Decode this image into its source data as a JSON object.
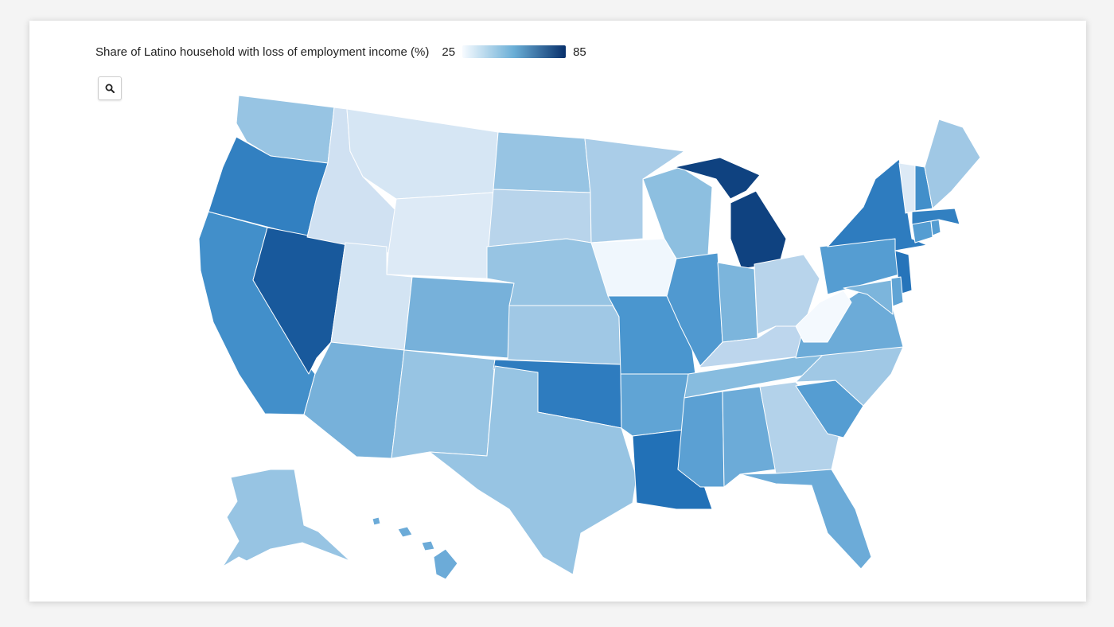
{
  "legend": {
    "title": "Share of Latino household with loss of employment income (%)",
    "min_label": "25",
    "max_label": "85",
    "color_min": "#f7fbff",
    "color_mid": "#6aaed6",
    "color_max": "#08306b"
  },
  "zoom_button": {
    "icon": "search-icon"
  },
  "chart_data": {
    "type": "choropleth",
    "title": "Share of Latino household with loss of employment income (%)",
    "scale": {
      "min": 25,
      "max": 85
    },
    "states": [
      {
        "id": "WA",
        "value": 50
      },
      {
        "id": "OR",
        "value": 70
      },
      {
        "id": "CA",
        "value": 66
      },
      {
        "id": "NV",
        "value": 78
      },
      {
        "id": "ID",
        "value": 37
      },
      {
        "id": "MT",
        "value": 35
      },
      {
        "id": "WY",
        "value": 33
      },
      {
        "id": "UT",
        "value": 36
      },
      {
        "id": "AZ",
        "value": 56
      },
      {
        "id": "CO",
        "value": 56
      },
      {
        "id": "NM",
        "value": 50
      },
      {
        "id": "ND",
        "value": 50
      },
      {
        "id": "SD",
        "value": 43
      },
      {
        "id": "NE",
        "value": 50
      },
      {
        "id": "KS",
        "value": 48
      },
      {
        "id": "OK",
        "value": 71
      },
      {
        "id": "TX",
        "value": 50
      },
      {
        "id": "MN",
        "value": 46
      },
      {
        "id": "IA",
        "value": 27
      },
      {
        "id": "MO",
        "value": 64
      },
      {
        "id": "AR",
        "value": 60
      },
      {
        "id": "LA",
        "value": 74
      },
      {
        "id": "WI",
        "value": 52
      },
      {
        "id": "IL",
        "value": 63
      },
      {
        "id": "MI",
        "value": 82
      },
      {
        "id": "IN",
        "value": 55
      },
      {
        "id": "OH",
        "value": 43
      },
      {
        "id": "KY",
        "value": 42
      },
      {
        "id": "TN",
        "value": 53
      },
      {
        "id": "MS",
        "value": 61
      },
      {
        "id": "AL",
        "value": 58
      },
      {
        "id": "GA",
        "value": 44
      },
      {
        "id": "FL",
        "value": 58
      },
      {
        "id": "SC",
        "value": 62
      },
      {
        "id": "NC",
        "value": 48
      },
      {
        "id": "VA",
        "value": 58
      },
      {
        "id": "WV",
        "value": 26
      },
      {
        "id": "PA",
        "value": 62
      },
      {
        "id": "NY",
        "value": 71
      },
      {
        "id": "NJ",
        "value": 73
      },
      {
        "id": "DE",
        "value": 60
      },
      {
        "id": "MD",
        "value": 55
      },
      {
        "id": "CT",
        "value": 62
      },
      {
        "id": "MA",
        "value": 70
      },
      {
        "id": "RI",
        "value": 62
      },
      {
        "id": "VT",
        "value": 33
      },
      {
        "id": "NH",
        "value": 66
      },
      {
        "id": "ME",
        "value": 48
      },
      {
        "id": "AK",
        "value": 50
      },
      {
        "id": "HI",
        "value": 58
      }
    ]
  }
}
